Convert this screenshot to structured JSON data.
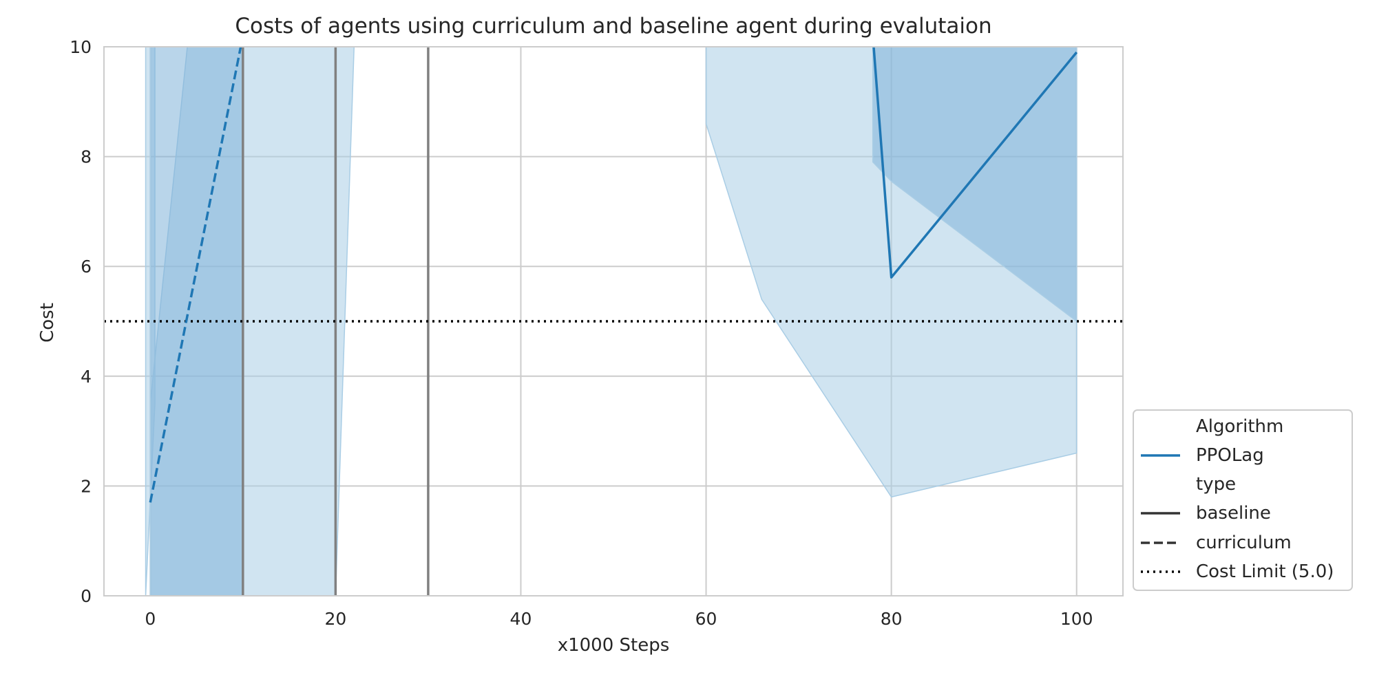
{
  "chart_data": {
    "type": "line",
    "title": "Costs of agents using curriculum and baseline agent during evalutaion",
    "xlabel": "x1000 Steps",
    "ylabel": "Cost",
    "xlim": [
      -5,
      105
    ],
    "ylim": [
      0,
      10
    ],
    "x_ticks": [
      "0",
      "20",
      "40",
      "60",
      "80",
      "100"
    ],
    "x_tick_values": [
      0,
      20,
      40,
      60,
      80,
      100
    ],
    "y_ticks": [
      "0",
      "2",
      "4",
      "6",
      "8",
      "10"
    ],
    "y_tick_values": [
      0,
      2,
      4,
      6,
      8,
      10
    ],
    "grid": true,
    "legend_placement": "lower-right, outside plot",
    "colors": {
      "series": "#1f77b4",
      "band": "#a9cde5",
      "band_overlap": "#7fb3d8",
      "vline": "#808080",
      "limit": "#000000",
      "grid": "#cccccc"
    },
    "series": [
      {
        "name": "PPOLag",
        "type": "curriculum",
        "style": "dashed",
        "x": [
          0,
          10
        ],
        "y": [
          1.7,
          10.2
        ],
        "band_lower": [
          0,
          0
        ],
        "band_upper": [
          10,
          10
        ]
      },
      {
        "name": "PPOLag",
        "type": "baseline",
        "style": "solid",
        "x": [
          78,
          80,
          100
        ],
        "y": [
          10.2,
          5.8,
          9.9
        ],
        "band_lower": [
          7.9,
          7.55,
          5.0
        ],
        "band_upper": [
          10,
          10,
          10
        ]
      }
    ],
    "extra_bands": [
      {
        "x": [
          -0.5,
          0.5
        ],
        "lower": [
          0,
          3.5
        ],
        "upper": [
          10,
          10
        ]
      },
      {
        "x": [
          0,
          4,
          10,
          20,
          22
        ],
        "lower": [
          0,
          0,
          0,
          0,
          10
        ],
        "upper": [
          3.5,
          10,
          10,
          10,
          10
        ]
      },
      {
        "x": [
          60,
          66,
          80,
          100
        ],
        "lower": [
          8.6,
          5.4,
          1.8,
          2.6
        ],
        "upper": [
          10,
          10,
          10,
          10
        ]
      }
    ],
    "vertical_lines": [
      10,
      20,
      30
    ],
    "cost_limit": 5.0,
    "legend": {
      "title_algorithm": "Algorithm",
      "algorithm_entries": [
        "PPOLag"
      ],
      "title_type": "type",
      "type_entries": [
        "baseline",
        "curriculum"
      ],
      "limit_entry": "Cost Limit (5.0)"
    }
  }
}
